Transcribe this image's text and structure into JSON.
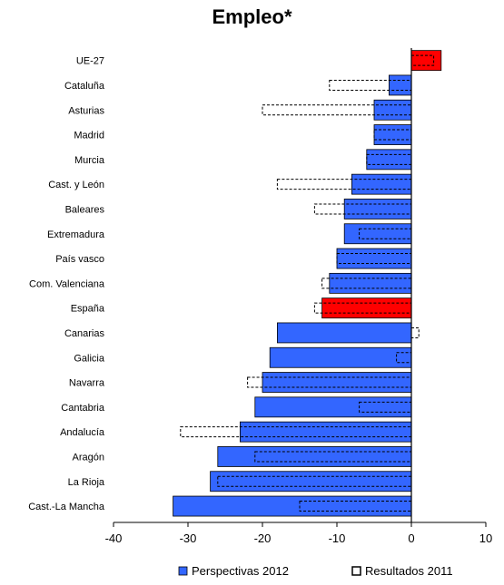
{
  "chart_data": {
    "type": "bar",
    "orientation": "horizontal",
    "title": "Empleo*",
    "xlabel": "",
    "ylabel": "",
    "xlim": [
      -40,
      10
    ],
    "xticks": [
      -40,
      -30,
      -20,
      -10,
      0,
      10
    ],
    "grid": false,
    "legend_position": "bottom",
    "categories": [
      "UE-27",
      "Cataluña",
      "Asturias",
      "Madrid",
      "Murcia",
      "Cast. y León",
      "Baleares",
      "Extremadura",
      "País vasco",
      "Com. Valenciana",
      "España",
      "Canarias",
      "Galicia",
      "Navarra",
      "Cantabria",
      "Andalucía",
      "Aragón",
      "La Rioja",
      "Cast.-La Mancha"
    ],
    "highlight_categories": [
      "UE-27",
      "España"
    ],
    "series": [
      {
        "name": "Perspectivas 2012",
        "values": [
          4,
          -3,
          -5,
          -5,
          -6,
          -8,
          -9,
          -9,
          -10,
          -11,
          -12,
          -18,
          -19,
          -20,
          -21,
          -23,
          -26,
          -27,
          -32
        ]
      },
      {
        "name": "Resultados 2011",
        "values": [
          3,
          -11,
          -20,
          -5,
          -6,
          -18,
          -13,
          -7,
          -10,
          -12,
          -13,
          1,
          -2,
          -22,
          -7,
          -31,
          -21,
          -26,
          -15
        ]
      }
    ],
    "colors": {
      "primary": "#3366ff",
      "highlight": "#ff0000",
      "outline": "#000000"
    }
  }
}
